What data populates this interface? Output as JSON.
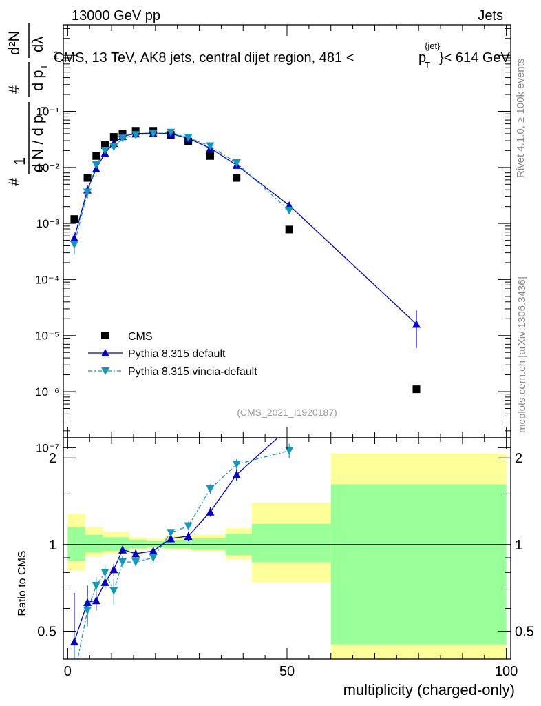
{
  "header": {
    "left": "13000 GeV pp",
    "right": "Jets"
  },
  "title": {
    "main": "CMS, 13 TeV, AK8 jets, central dijet region, 481 <",
    "p": "p",
    "sub": "T",
    "sup": "{jet}",
    "end": "}< 614 GeV"
  },
  "ylabel_top": {
    "num": "1",
    "hash1": "#",
    "den": "d N / d p",
    "den_sub": "T",
    "hash2": "#",
    "frac2": "d p",
    "frac2_sub": "T",
    "d2N": "d²N",
    "dl": "dλ",
    "numer": "#"
  },
  "ylabel_bottom": "Ratio to CMS",
  "xlabel": "multiplicity (charged-only)",
  "side_top": "Rivet 4.1.0, ≥ 100k events",
  "side_bottom": "mcplots.cern.ch [arXiv:1306.3436]",
  "analysis_id": "(CMS_2021_I1920187)",
  "legend": {
    "cms": "CMS",
    "default": "Pythia 8.315 default",
    "vincia": "Pythia 8.315 vincia-default"
  },
  "colors": {
    "data": "#000000",
    "default": "#0000cc",
    "vincia": "#1199bb",
    "green": "#99ff99",
    "yellow": "#ffff99"
  },
  "top_ticks": [
    "10⁻⁷",
    "10⁻⁶",
    "10⁻⁵",
    "10⁻⁴",
    "10⁻³",
    "10⁻²",
    "10⁻¹",
    "1"
  ],
  "top_tick_exps": [
    -7,
    -6,
    -5,
    -4,
    -3,
    -2,
    -1,
    0
  ],
  "bottom_ticks": [
    "0.5",
    "1",
    "2"
  ],
  "bottom_tick_values": [
    0.5,
    1,
    2
  ],
  "x_ticks": [
    "0",
    "50",
    "100"
  ],
  "x_tick_values": [
    0,
    50,
    100
  ],
  "chart_data": {
    "type": "scatter",
    "x_range": [
      -1,
      101
    ],
    "y_top_range_log": [
      1.5e-07,
      3.5
    ],
    "y_bottom_range_log": [
      0.4,
      2.35
    ],
    "series": [
      {
        "name": "CMS",
        "x": [
          1.5,
          4.5,
          6.5,
          8.5,
          10.5,
          12.5,
          15.5,
          19.5,
          23.5,
          27.5,
          32.5,
          38.5,
          50.5,
          79.5
        ],
        "values": [
          0.0012,
          0.0065,
          0.016,
          0.025,
          0.035,
          0.04,
          0.045,
          0.045,
          0.038,
          0.029,
          0.016,
          0.0065,
          0.00078,
          1.1e-06
        ]
      },
      {
        "name": "Pythia 8.315 default",
        "x": [
          1.5,
          4.5,
          6.5,
          8.5,
          10.5,
          12.5,
          15.5,
          19.5,
          23.5,
          27.5,
          32.5,
          38.5,
          50.5,
          79.5
        ],
        "values": [
          0.00055,
          0.004,
          0.0095,
          0.018,
          0.027,
          0.036,
          0.04,
          0.041,
          0.04,
          0.033,
          0.022,
          0.011,
          0.0021,
          1.6e-05
        ],
        "err_low": [
          0.0004,
          0.0033,
          0.0085,
          0.0168,
          0.026,
          0.035,
          0.039,
          0.04,
          0.039,
          0.032,
          0.021,
          0.0103,
          0.0019,
          6e-06
        ],
        "err_high": [
          0.0007,
          0.0048,
          0.0105,
          0.0192,
          0.028,
          0.037,
          0.041,
          0.042,
          0.041,
          0.034,
          0.023,
          0.0117,
          0.0023,
          2.8e-05
        ]
      },
      {
        "name": "Pythia 8.315 vincia-default",
        "x": [
          1.5,
          4.5,
          6.5,
          8.5,
          10.5,
          12.5,
          15.5,
          19.5,
          23.5,
          27.5,
          32.5,
          38.5,
          50.5
        ],
        "values": [
          0.00042,
          0.0036,
          0.011,
          0.02,
          0.023,
          0.033,
          0.038,
          0.04,
          0.042,
          0.034,
          0.024,
          0.012,
          0.0017
        ],
        "err_low": [
          0.00028,
          0.0028,
          0.0099,
          0.019,
          0.0218,
          0.032,
          0.037,
          0.039,
          0.041,
          0.033,
          0.023,
          0.0113,
          0.0015
        ],
        "err_high": [
          0.00058,
          0.0045,
          0.0121,
          0.021,
          0.0242,
          0.034,
          0.039,
          0.041,
          0.043,
          0.035,
          0.025,
          0.0127,
          0.0019
        ]
      }
    ],
    "ratio": {
      "default": {
        "x": [
          1.5,
          4.5,
          6.5,
          8.5,
          10.5,
          12.5,
          15.5,
          19.5,
          23.5,
          27.5,
          32.5,
          38.5,
          50.5,
          79.5
        ],
        "values": [
          0.46,
          0.63,
          0.64,
          0.74,
          0.82,
          0.96,
          0.93,
          0.95,
          1.05,
          1.07,
          1.3,
          1.75,
          2.55,
          14.0
        ],
        "err": [
          0.22,
          0.09,
          0.05,
          0.04,
          0.04,
          0.03,
          0.03,
          0.03,
          0.03,
          0.04,
          0.05,
          0.08,
          0.15,
          8.0
        ]
      },
      "vincia": {
        "x": [
          1.5,
          4.5,
          6.5,
          8.5,
          10.5,
          12.5,
          15.5,
          19.5,
          23.5,
          27.5,
          32.5,
          38.5,
          50.5
        ],
        "values": [
          0.35,
          0.59,
          0.72,
          0.8,
          0.69,
          0.87,
          0.87,
          0.9,
          1.1,
          1.16,
          1.56,
          1.9,
          2.12
        ],
        "err": [
          0.15,
          0.07,
          0.05,
          0.05,
          0.07,
          0.04,
          0.03,
          0.04,
          0.03,
          0.04,
          0.06,
          0.08,
          0.12
        ]
      }
    },
    "bands": {
      "x_edges": [
        0,
        4,
        8,
        14,
        18,
        22,
        28,
        36,
        42,
        60,
        100
      ],
      "green_low": [
        0.88,
        0.94,
        0.95,
        0.97,
        0.98,
        0.97,
        0.96,
        0.92,
        0.87,
        0.45
      ],
      "green_high": [
        1.15,
        1.08,
        1.06,
        1.04,
        1.03,
        1.04,
        1.05,
        1.09,
        1.18,
        1.62
      ],
      "yellow_low": [
        0.81,
        0.91,
        0.93,
        0.96,
        0.97,
        0.96,
        0.95,
        0.89,
        0.74,
        0.36
      ],
      "yellow_high": [
        1.28,
        1.15,
        1.11,
        1.06,
        1.05,
        1.07,
        1.08,
        1.14,
        1.4,
        2.07
      ]
    },
    "xlabel": "multiplicity (charged-only)",
    "ylabel": "Ratio to CMS"
  }
}
